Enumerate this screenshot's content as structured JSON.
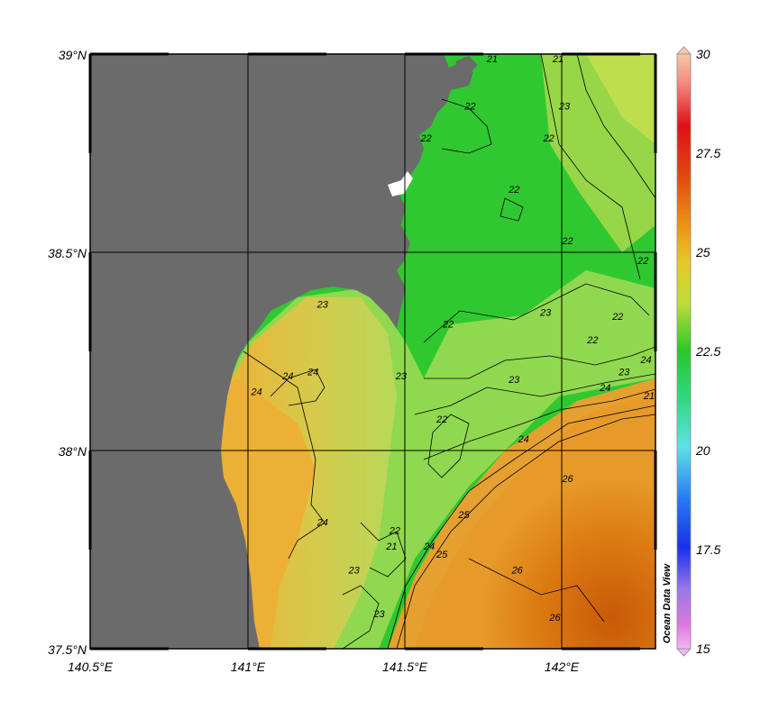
{
  "map": {
    "lon_labels": [
      "140.5°E",
      "141°E",
      "141.5°E",
      "142°E"
    ],
    "lat_labels": [
      "39°N",
      "38.5°N",
      "38°N",
      "37.5°N"
    ],
    "lon_range": [
      140.5,
      142.3
    ],
    "lat_range": [
      37.5,
      39.0
    ],
    "colors": {
      "land": "#6b6b6b",
      "frame": "#000000"
    }
  },
  "contours": [
    {
      "text": "21",
      "lon": 141.78,
      "lat": 38.98
    },
    {
      "text": "21",
      "lon": 141.99,
      "lat": 38.98
    },
    {
      "text": "22",
      "lon": 141.71,
      "lat": 38.86
    },
    {
      "text": "23",
      "lon": 142.01,
      "lat": 38.86
    },
    {
      "text": "22",
      "lon": 141.57,
      "lat": 38.78
    },
    {
      "text": "22",
      "lon": 141.96,
      "lat": 38.78
    },
    {
      "text": "22",
      "lon": 141.85,
      "lat": 38.65
    },
    {
      "text": "22",
      "lon": 142.02,
      "lat": 38.52
    },
    {
      "text": "22",
      "lon": 142.26,
      "lat": 38.47
    },
    {
      "text": "23",
      "lon": 141.24,
      "lat": 38.36
    },
    {
      "text": "22",
      "lon": 141.64,
      "lat": 38.31
    },
    {
      "text": "23",
      "lon": 141.95,
      "lat": 38.34
    },
    {
      "text": "22",
      "lon": 142.18,
      "lat": 38.33
    },
    {
      "text": "22",
      "lon": 142.1,
      "lat": 38.27
    },
    {
      "text": "23",
      "lon": 142.2,
      "lat": 38.19
    },
    {
      "text": "24",
      "lon": 142.27,
      "lat": 38.22
    },
    {
      "text": "24",
      "lon": 141.13,
      "lat": 38.18
    },
    {
      "text": "24",
      "lon": 141.21,
      "lat": 38.19
    },
    {
      "text": "24",
      "lon": 141.03,
      "lat": 38.14
    },
    {
      "text": "23",
      "lon": 141.49,
      "lat": 38.18
    },
    {
      "text": "23",
      "lon": 141.85,
      "lat": 38.17
    },
    {
      "text": "24",
      "lon": 142.14,
      "lat": 38.15
    },
    {
      "text": "21",
      "lon": 142.28,
      "lat": 38.13
    },
    {
      "text": "22",
      "lon": 141.62,
      "lat": 38.07
    },
    {
      "text": "24",
      "lon": 141.88,
      "lat": 38.02
    },
    {
      "text": "26",
      "lon": 142.02,
      "lat": 37.92
    },
    {
      "text": "24",
      "lon": 141.24,
      "lat": 37.81
    },
    {
      "text": "25",
      "lon": 141.69,
      "lat": 37.83
    },
    {
      "text": "22",
      "lon": 141.47,
      "lat": 37.79
    },
    {
      "text": "21",
      "lon": 141.46,
      "lat": 37.75
    },
    {
      "text": "24",
      "lon": 141.58,
      "lat": 37.75
    },
    {
      "text": "25",
      "lon": 141.62,
      "lat": 37.73
    },
    {
      "text": "23",
      "lon": 141.34,
      "lat": 37.69
    },
    {
      "text": "26",
      "lon": 141.86,
      "lat": 37.69
    },
    {
      "text": "23",
      "lon": 141.42,
      "lat": 37.58
    },
    {
      "text": "26",
      "lon": 141.98,
      "lat": 37.57
    }
  ],
  "colorbar": {
    "ticks": [
      "30",
      "27.5",
      "25",
      "22.5",
      "20",
      "17.5",
      "15"
    ],
    "range": [
      15,
      30
    ],
    "credit": "Ocean Data View"
  }
}
